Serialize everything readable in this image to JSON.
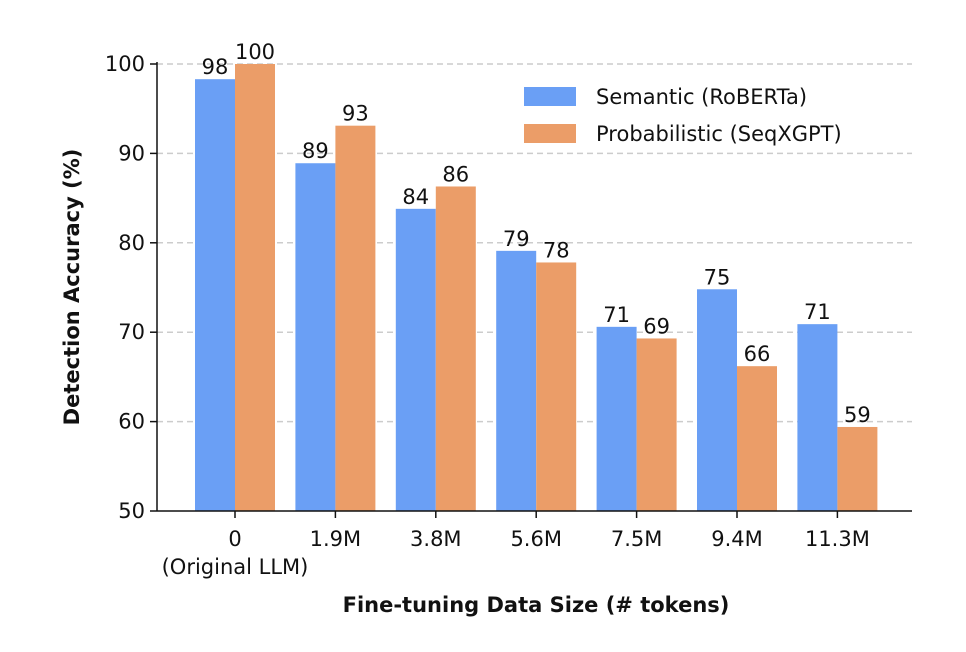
{
  "chart_data": {
    "type": "bar",
    "title": "",
    "xlabel": "Fine-tuning Data Size (# tokens)",
    "ylabel": "Detection Accuracy (%)",
    "categories": [
      [
        "0",
        "(Original LLM)"
      ],
      [
        "1.9M"
      ],
      [
        "3.8M"
      ],
      [
        "5.6M"
      ],
      [
        "7.5M"
      ],
      [
        "9.4M"
      ],
      [
        "11.3M"
      ]
    ],
    "series": [
      {
        "name": "Semantic (RoBERTa)",
        "color": "#6a9ff5",
        "values": [
          98.3,
          88.9,
          83.8,
          79.1,
          70.6,
          74.8,
          70.9
        ],
        "labels": [
          "98",
          "89",
          "84",
          "79",
          "71",
          "75",
          "71"
        ]
      },
      {
        "name": "Probabilistic (SeqXGPT)",
        "color": "#eb9d68",
        "values": [
          100,
          93.1,
          86.3,
          77.8,
          69.3,
          66.2,
          59.4
        ],
        "labels": [
          "100",
          "93",
          "86",
          "78",
          "69",
          "66",
          "59"
        ]
      }
    ],
    "ylim": [
      50,
      100
    ],
    "yticks": [
      "50",
      "60",
      "70",
      "80",
      "90",
      "100"
    ],
    "grid": true,
    "legend_position": "top-right"
  }
}
